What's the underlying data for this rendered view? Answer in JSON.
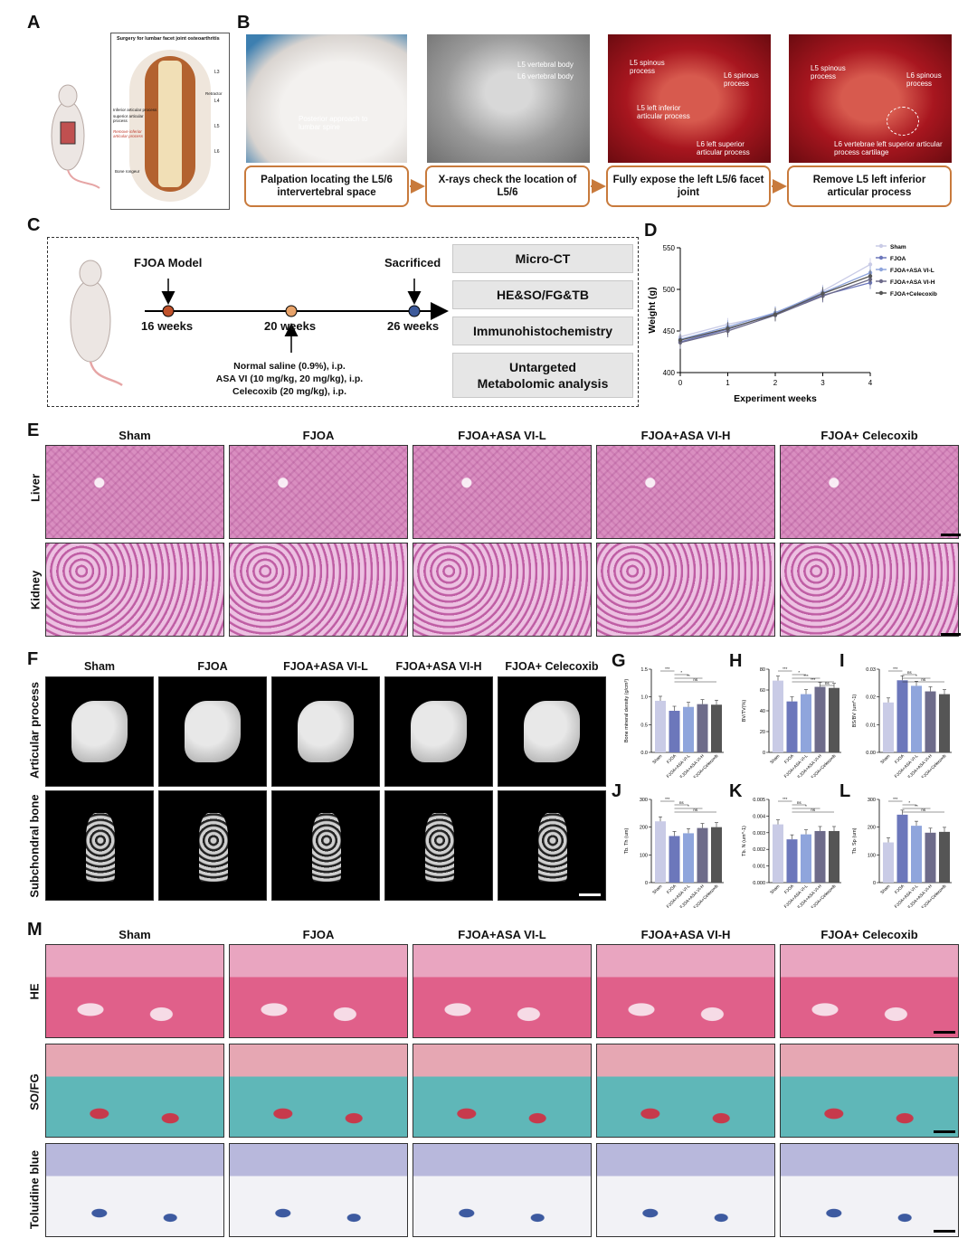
{
  "panel_labels": {
    "a": "A",
    "b": "B",
    "c": "C",
    "d": "D",
    "e": "E",
    "f": "F",
    "g": "G",
    "h": "H",
    "i": "I",
    "j": "J",
    "k": "K",
    "l": "L",
    "m": "M"
  },
  "panel_a": {
    "title": "Surgery for lumbar facet joint osteoarthritis",
    "labels": [
      "L3",
      "Retractor",
      "L4",
      "Inferior articular process",
      "superior articular process",
      "L5",
      "Remove inferior articular process",
      "L6",
      "Bone rongeur"
    ]
  },
  "panel_b": {
    "photo1_label": "Posterior approach to lumbar spine",
    "photo2_labels": [
      "L5 vertebral body",
      "L6 vertebral body"
    ],
    "photo3_labels": [
      "L5 spinous process",
      "L6 spinous process",
      "L5 left inferior articular process",
      "L6 left superior articular process"
    ],
    "photo4_labels": [
      "L5 spinous process",
      "L6 spinous process",
      "L6 vertebrae left superior articular process cartilage"
    ],
    "steps": [
      "Palpation locating the L5/6 intervertebral space",
      "X-rays check the location of  L5/6",
      "Fully expose the left L5/6 facet joint",
      "Remove L5 left inferior articular process"
    ]
  },
  "panel_c": {
    "model_label": "FJOA Model",
    "sacrificed_label": "Sacrificed",
    "times": [
      "16 weeks",
      "20 weeks",
      "26 weeks"
    ],
    "treatments": [
      "Normal saline (0.9%), i.p.",
      "ASA VI (10 mg/kg, 20 mg/kg), i.p.",
      "Celecoxib (20 mg/kg), i.p."
    ],
    "analyses": [
      "Micro-CT",
      "HE&SO/FG&TB",
      "Immunohistochemistry",
      "Untargeted Metabolomic analysis"
    ]
  },
  "groups": [
    "Sham",
    "FJOA",
    "FJOA+ASA VI-L",
    "FJOA+ASA VI-H",
    "FJOA+ Celecoxib"
  ],
  "panel_e_rows": [
    "Liver",
    "Kidney"
  ],
  "panel_f_rows": [
    "Articular process",
    "Subchondral bone"
  ],
  "panel_m_rows": [
    "HE",
    "SO/FG",
    "Toluidine blue"
  ],
  "colors": {
    "sham": "#c9cbe6",
    "fjoa": "#6c77bb",
    "asa_l": "#8fa5dc",
    "asa_h": "#6d6b8a",
    "cele": "#555555",
    "orange": "#c87a3c"
  },
  "chart_data": [
    {
      "type": "line",
      "panel": "D",
      "x": [
        0,
        1,
        2,
        3,
        4
      ],
      "xlabel": "Experiment weeks",
      "ylabel": "Weight (g)",
      "ylim": [
        400,
        550
      ],
      "yticks": [
        400,
        450,
        500,
        550
      ],
      "legend_position": "top-right",
      "series": [
        {
          "name": "Sham",
          "values": [
            443,
            458,
            470,
            498,
            530
          ],
          "color": "#c9cbe6"
        },
        {
          "name": "FJOA",
          "values": [
            437,
            452,
            471,
            493,
            508
          ],
          "color": "#6c77bb"
        },
        {
          "name": "FJOA+ASA VI-L",
          "values": [
            440,
            455,
            472,
            496,
            520
          ],
          "color": "#8fa5dc"
        },
        {
          "name": "FJOA+ASA VI-H",
          "values": [
            436,
            450,
            469,
            492,
            512
          ],
          "color": "#6d6b8a"
        },
        {
          "name": "FJOA+Celecoxib",
          "values": [
            439,
            453,
            470,
            495,
            516
          ],
          "color": "#555555"
        }
      ]
    },
    {
      "type": "bar",
      "panel": "G",
      "ylabel": "Bone mineral density (g/cm³)",
      "ylim": [
        0,
        1.5
      ],
      "yticks": [
        "0.0",
        "0.5",
        "1.0",
        "1.5"
      ],
      "categories": [
        "Sham",
        "FJOA",
        "FJOA+ASA VI-L",
        "FJOA+ASA VI-H",
        "FJOA+Celecoxib"
      ],
      "values": [
        0.93,
        0.75,
        0.82,
        0.87,
        0.86
      ],
      "sig": [
        "***",
        "*",
        "**",
        "ns"
      ]
    },
    {
      "type": "bar",
      "panel": "H",
      "ylabel": "BV/TV(%)",
      "ylim": [
        0,
        80
      ],
      "yticks": [
        "0",
        "20",
        "40",
        "60",
        "80"
      ],
      "categories": [
        "Sham",
        "FJOA",
        "FJOA+ASA VI-L",
        "FJOA+ASA VI-H",
        "FJOA+Celecoxib"
      ],
      "values": [
        69,
        49,
        56,
        63,
        62
      ],
      "sig": [
        "***",
        "*",
        "***",
        "***",
        "ns"
      ]
    },
    {
      "type": "bar",
      "panel": "I",
      "ylabel": "BS/BV (um^-1)",
      "ylim": [
        0,
        0.03
      ],
      "yticks": [
        "0.00",
        "0.01",
        "0.02",
        "0.03"
      ],
      "categories": [
        "Sham",
        "FJOA",
        "FJOA+ASA VI-L",
        "FJOA+ASA VI-H",
        "FJOA+Celecoxib"
      ],
      "values": [
        0.018,
        0.026,
        0.024,
        0.022,
        0.021
      ],
      "sig": [
        "***",
        "ns",
        "*",
        "ns"
      ]
    },
    {
      "type": "bar",
      "panel": "J",
      "ylabel": "Tb. Th (um)",
      "ylim": [
        0,
        300
      ],
      "yticks": [
        "0",
        "100",
        "200",
        "300"
      ],
      "categories": [
        "Sham",
        "FJOA",
        "FJOA+ASA VI-L",
        "FJOA+ASA VI-H",
        "FJOA+Celecoxib"
      ],
      "values": [
        221,
        168,
        178,
        197,
        200
      ],
      "sig": [
        "***",
        "ns",
        "*",
        "ns"
      ]
    },
    {
      "type": "bar",
      "panel": "K",
      "ylabel": "Tb. N (um^-1)",
      "ylim": [
        0,
        0.005
      ],
      "yticks": [
        "0.000",
        "0.001",
        "0.002",
        "0.003",
        "0.004",
        "0.005"
      ],
      "categories": [
        "Sham",
        "FJOA",
        "FJOA+ASA VI-L",
        "FJOA+ASA VI-H",
        "FJOA+Celecoxib"
      ],
      "values": [
        0.0035,
        0.0026,
        0.0029,
        0.0031,
        0.0031
      ],
      "sig": [
        "***",
        "ns",
        "*",
        "ns"
      ]
    },
    {
      "type": "bar",
      "panel": "L",
      "ylabel": "Tb. Sp (um)",
      "ylim": [
        0,
        300
      ],
      "yticks": [
        "0",
        "100",
        "200",
        "300"
      ],
      "categories": [
        "Sham",
        "FJOA",
        "FJOA+ASA VI-L",
        "FJOA+ASA VI-H",
        "FJOA+Celecoxib"
      ],
      "values": [
        145,
        245,
        205,
        180,
        183
      ],
      "sig": [
        "***",
        "*",
        "**",
        "ns"
      ]
    }
  ]
}
